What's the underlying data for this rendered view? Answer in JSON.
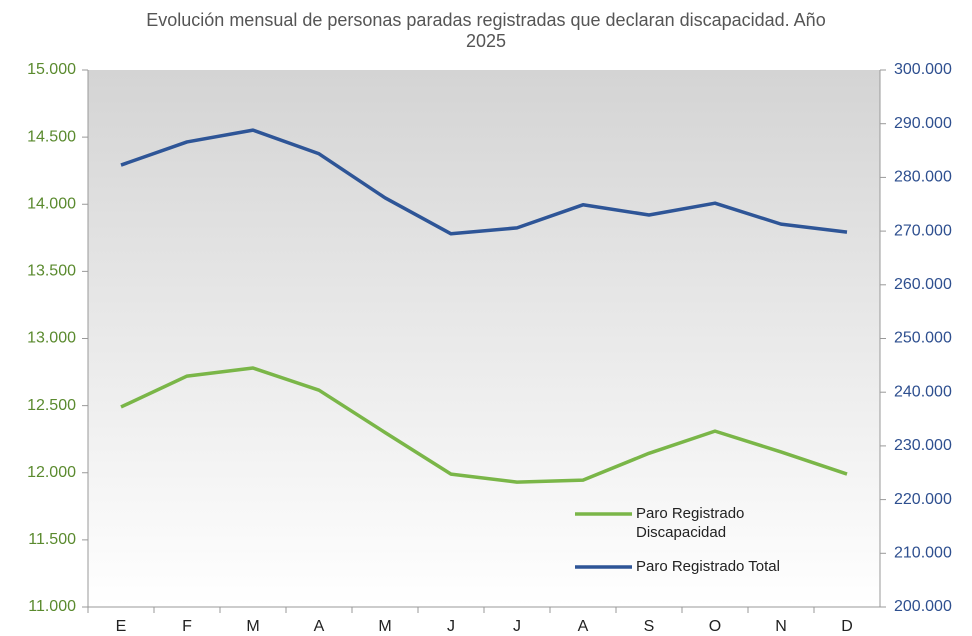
{
  "chart_data": {
    "type": "line",
    "title": "Evolución mensual de personas paradas registradas que declaran discapacidad. Año 2025",
    "categories": [
      "E",
      "F",
      "M",
      "A",
      "M",
      "J",
      "J",
      "A",
      "S",
      "O",
      "N",
      "D"
    ],
    "series": [
      {
        "name": "Paro Registrado Discapacidad",
        "color": "#7ab648",
        "axis": "y",
        "values": [
          12490,
          12720,
          12780,
          12615,
          12300,
          11990,
          11930,
          11945,
          12145,
          12310,
          12155,
          11990
        ]
      },
      {
        "name": "Paro Registrado Total",
        "color": "#2e5597",
        "axis": "y2",
        "values": [
          282300,
          286600,
          288800,
          284400,
          276200,
          269500,
          270600,
          274900,
          273000,
          275200,
          271300,
          269800
        ]
      }
    ],
    "ylim": [
      11000,
      15000
    ],
    "yticks": [
      {
        "value": 11000,
        "label": "11.000"
      },
      {
        "value": 11500,
        "label": "11.500"
      },
      {
        "value": 12000,
        "label": "12.000"
      },
      {
        "value": 12500,
        "label": "12.500"
      },
      {
        "value": 13000,
        "label": "13.000"
      },
      {
        "value": 13500,
        "label": "13.500"
      },
      {
        "value": 14000,
        "label": "14.000"
      },
      {
        "value": 14500,
        "label": "14.500"
      },
      {
        "value": 15000,
        "label": "15.000"
      }
    ],
    "y2lim": [
      200000,
      300000
    ],
    "y2ticks": [
      {
        "value": 200000,
        "label": "200.000"
      },
      {
        "value": 210000,
        "label": "210.000"
      },
      {
        "value": 220000,
        "label": "220.000"
      },
      {
        "value": 230000,
        "label": "230.000"
      },
      {
        "value": 240000,
        "label": "240.000"
      },
      {
        "value": 250000,
        "label": "250.000"
      },
      {
        "value": 260000,
        "label": "260.000"
      },
      {
        "value": 270000,
        "label": "270.000"
      },
      {
        "value": 280000,
        "label": "280.000"
      },
      {
        "value": 290000,
        "label": "290.000"
      },
      {
        "value": 300000,
        "label": "300.000"
      }
    ],
    "legend": "lower right"
  }
}
